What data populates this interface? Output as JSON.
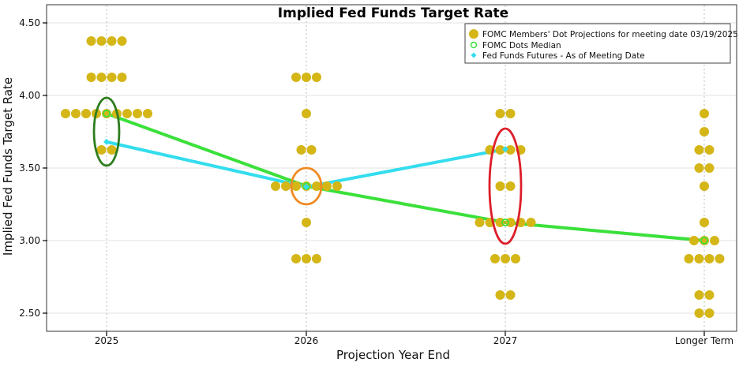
{
  "colors": {
    "dot": "#d4b617",
    "median": "#3be03b",
    "futures": "#33ddee",
    "circle_2025": "#2e7d1e",
    "circle_2026": "#f08a24",
    "circle_2027": "#dd1e2a"
  },
  "chart_data": {
    "type": "scatter",
    "title": "Implied Fed Funds Target Rate",
    "xlabel": "Projection Year End",
    "ylabel": "Implied Fed Funds Target Rate",
    "categories": [
      "2025",
      "2026",
      "2027",
      "Longer Term"
    ],
    "ylim": [
      2.375,
      4.625
    ],
    "yticks": [
      "2.50",
      "3.00",
      "3.50",
      "4.00",
      "4.50"
    ],
    "legend": {
      "position": "top-right",
      "entries": [
        "FOMC Members' Dot Projections for meeting date 03/19/2025",
        "FOMC Dots Median",
        "Fed Funds Futures - As of Meeting Date"
      ]
    },
    "dot_projections": [
      {
        "category": "2025",
        "rate": 4.375,
        "count": 4
      },
      {
        "category": "2025",
        "rate": 4.125,
        "count": 4
      },
      {
        "category": "2025",
        "rate": 3.875,
        "count": 9
      },
      {
        "category": "2025",
        "rate": 3.625,
        "count": 2
      },
      {
        "category": "2026",
        "rate": 4.125,
        "count": 3
      },
      {
        "category": "2026",
        "rate": 3.875,
        "count": 1
      },
      {
        "category": "2026",
        "rate": 3.625,
        "count": 2
      },
      {
        "category": "2026",
        "rate": 3.375,
        "count": 7
      },
      {
        "category": "2026",
        "rate": 3.125,
        "count": 1
      },
      {
        "category": "2026",
        "rate": 2.875,
        "count": 3
      },
      {
        "category": "2027",
        "rate": 3.875,
        "count": 2
      },
      {
        "category": "2027",
        "rate": 3.625,
        "count": 4
      },
      {
        "category": "2027",
        "rate": 3.375,
        "count": 2
      },
      {
        "category": "2027",
        "rate": 3.125,
        "count": 6
      },
      {
        "category": "2027",
        "rate": 2.875,
        "count": 3
      },
      {
        "category": "2027",
        "rate": 2.625,
        "count": 2
      },
      {
        "category": "Longer Term",
        "rate": 3.875,
        "count": 1
      },
      {
        "category": "Longer Term",
        "rate": 3.75,
        "count": 1
      },
      {
        "category": "Longer Term",
        "rate": 3.625,
        "count": 2
      },
      {
        "category": "Longer Term",
        "rate": 3.5,
        "count": 2
      },
      {
        "category": "Longer Term",
        "rate": 3.375,
        "count": 1
      },
      {
        "category": "Longer Term",
        "rate": 3.125,
        "count": 1
      },
      {
        "category": "Longer Term",
        "rate": 3.0,
        "count": 3
      },
      {
        "category": "Longer Term",
        "rate": 2.875,
        "count": 4
      },
      {
        "category": "Longer Term",
        "rate": 2.625,
        "count": 2
      },
      {
        "category": "Longer Term",
        "rate": 2.5,
        "count": 2
      }
    ],
    "series": [
      {
        "name": "FOMC Dots Median",
        "categories": [
          "2025",
          "2026",
          "2027",
          "Longer Term"
        ],
        "values": [
          3.875,
          3.375,
          3.125,
          3.0
        ]
      },
      {
        "name": "Fed Funds Futures - As of Meeting Date",
        "categories": [
          "2025",
          "2026",
          "2027"
        ],
        "values": [
          3.68,
          3.37,
          3.63
        ]
      }
    ],
    "annotations": [
      {
        "category": "2025",
        "rate": 3.75,
        "shape": "ellipse",
        "color": "green"
      },
      {
        "category": "2026",
        "rate": 3.375,
        "shape": "circle",
        "color": "orange"
      },
      {
        "category": "2027",
        "rate": 3.375,
        "shape": "ellipse",
        "color": "red"
      }
    ]
  }
}
